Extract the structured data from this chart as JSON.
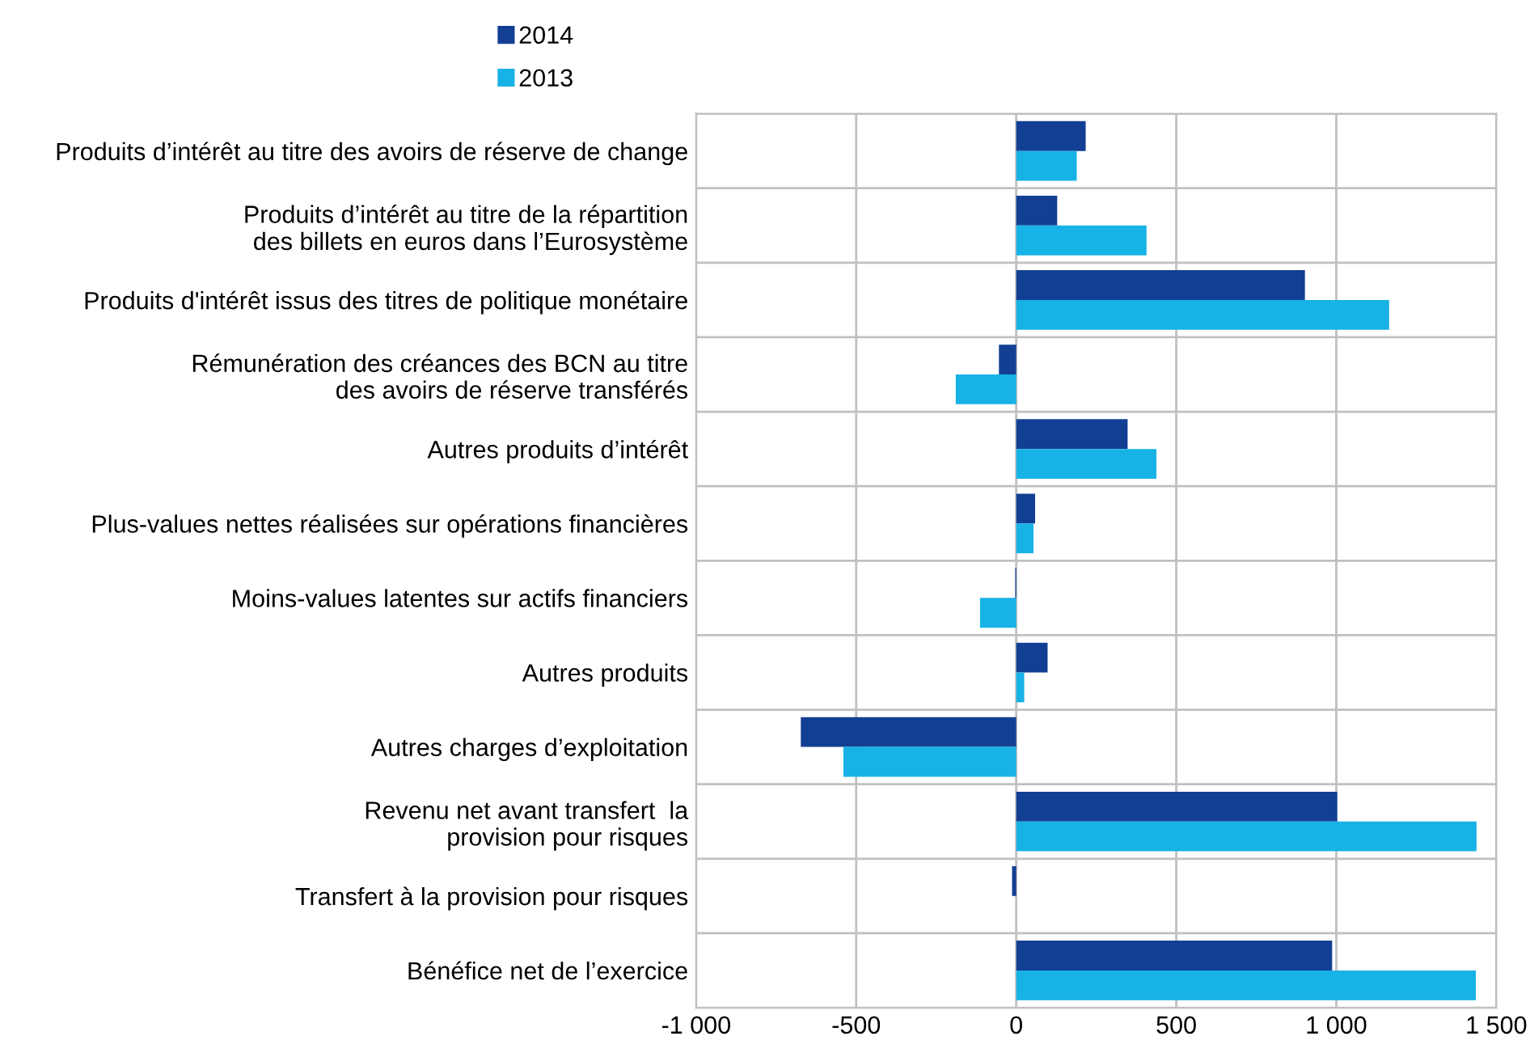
{
  "chart_data": {
    "type": "bar",
    "orientation": "horizontal",
    "categories": [
      "Produits d’intérêt au titre des avoirs de réserve de change",
      "Produits d’intérêt au titre de la répartition\ndes billets en euros dans l’Eurosystème",
      "Produits d'intérêt issus des titres de politique monétaire",
      "Rémunération des créances des BCN au titre\ndes avoirs de réserve transférés",
      "Autres produits d’intérêt",
      "Plus-values nettes réalisées sur opérations financières",
      "Moins-values latentes sur actifs financiers",
      "Autres produits",
      "Autres charges d’exploitation",
      "Revenu net avant transfert  la\nprovision pour risques",
      "Transfert à la provision pour risques",
      "Bénéfice net de l’exercice"
    ],
    "series": [
      {
        "name": "2014",
        "color": "#123f93",
        "values": [
          217,
          128,
          902,
          -54,
          348,
          59,
          -3,
          98,
          -673,
          1003,
          -13,
          987
        ]
      },
      {
        "name": "2013",
        "color": "#17b2e6",
        "values": [
          189,
          407,
          1165,
          -189,
          438,
          54,
          -113,
          25,
          -540,
          1438,
          0,
          1436
        ]
      }
    ],
    "xlim": [
      -1000,
      1500
    ],
    "xticks": [
      {
        "value": -1000,
        "label": "-1 000"
      },
      -500,
      0,
      500,
      {
        "value": 1000,
        "label": "1 000"
      },
      {
        "value": 1500,
        "label": "1 500"
      }
    ],
    "grid": true,
    "legend": "top"
  }
}
